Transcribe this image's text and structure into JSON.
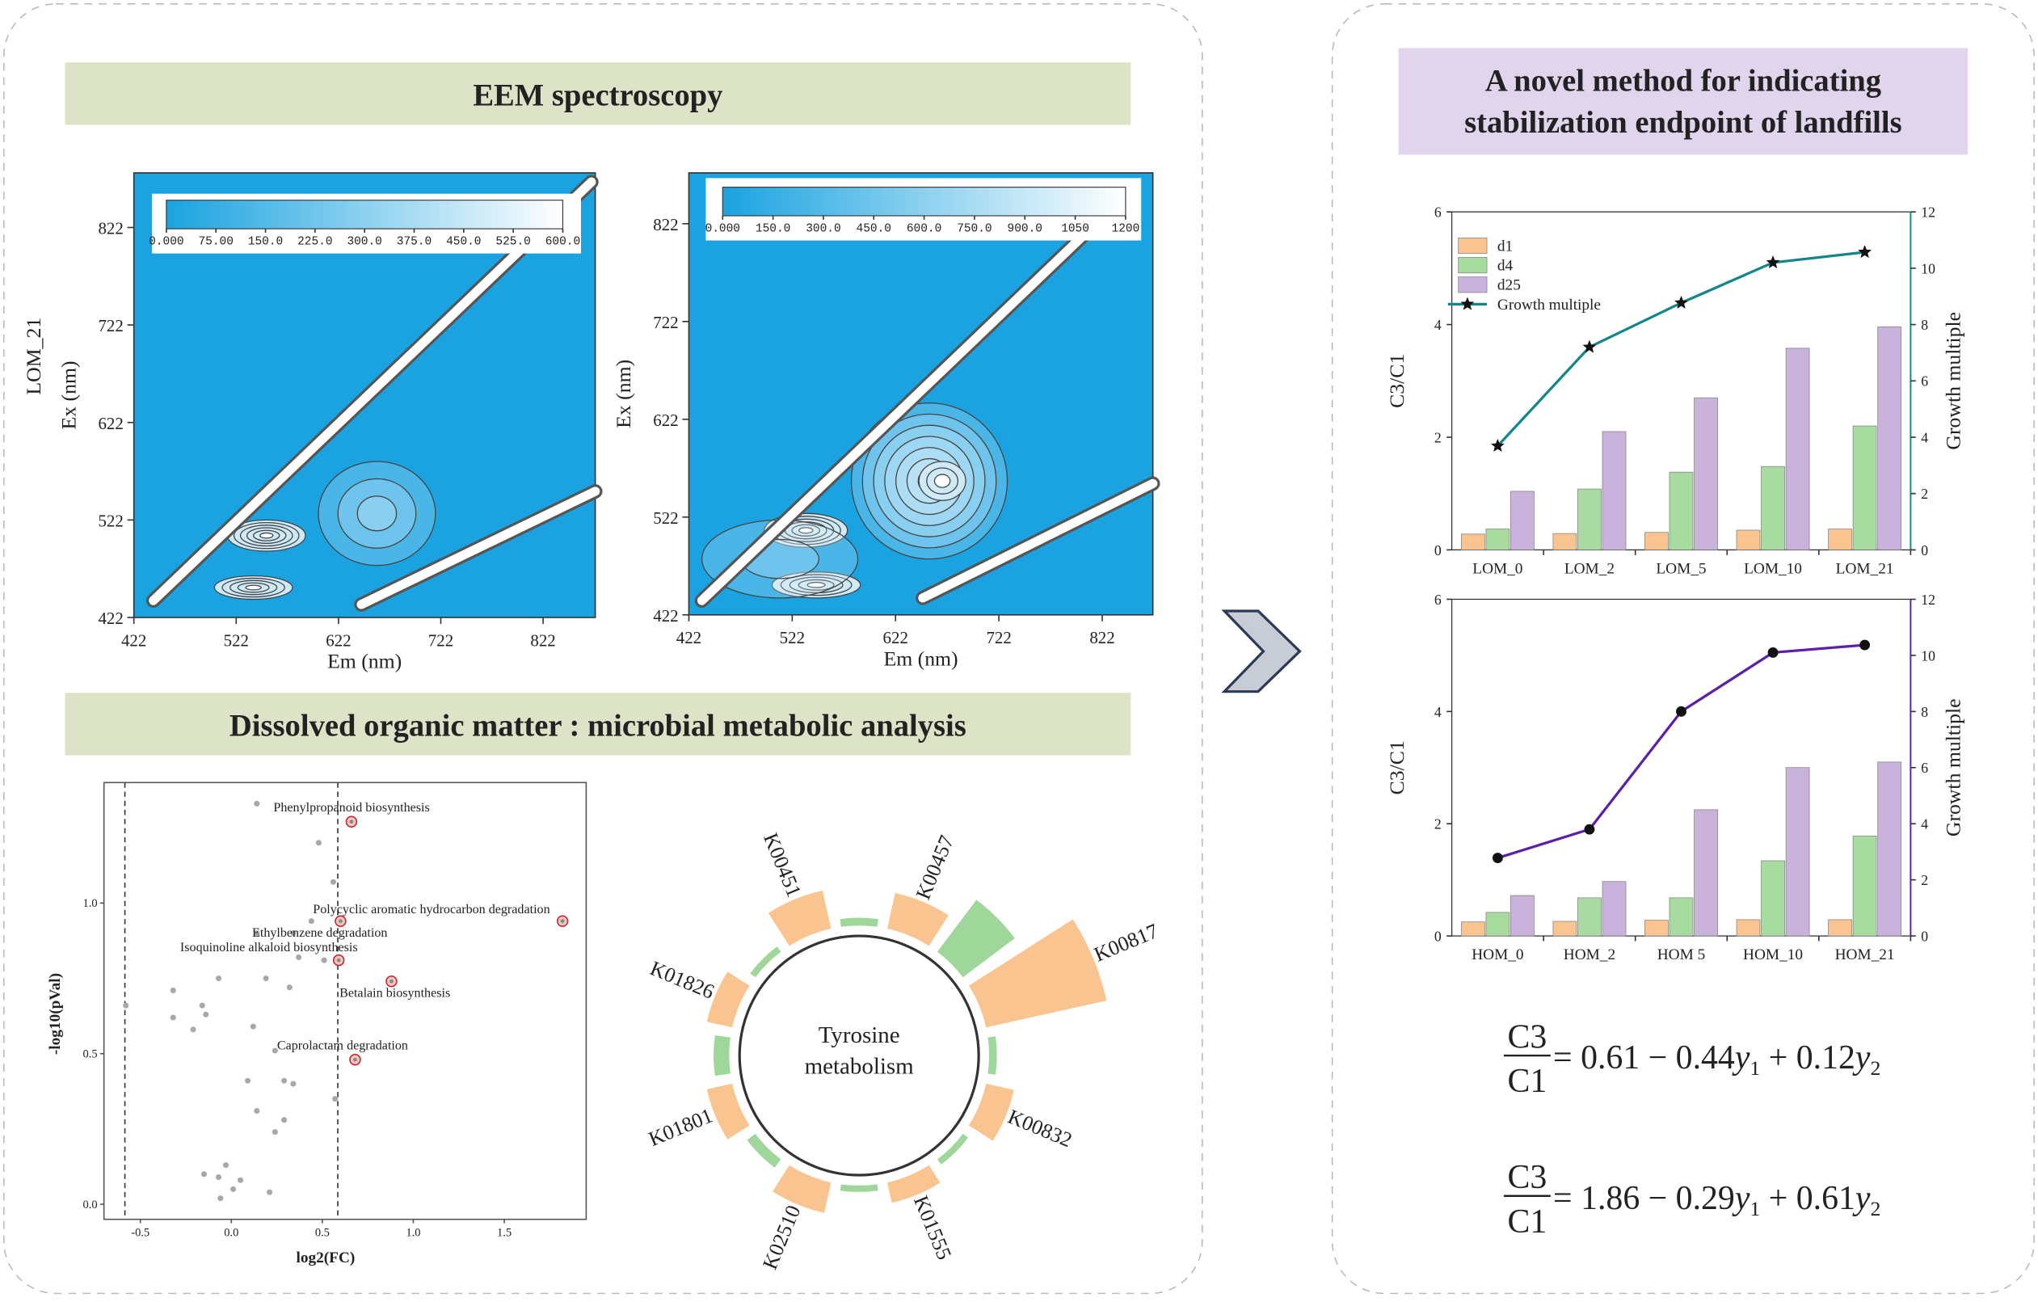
{
  "panels": {
    "eem_title": "EEM spectroscopy",
    "dom_title": "Dissolved organic matter : microbial metabolic analysis",
    "method_title_lines": [
      "A novel method for indicating",
      "stabilization endpoint of landfills"
    ]
  },
  "chart_data": [
    {
      "type": "contour",
      "row_label": "LOM_21",
      "xlabel": "Em (nm)",
      "ylabel": "Ex (nm)",
      "color": "#1aa3e0",
      "xlim": [
        422,
        873
      ],
      "ylim": [
        422,
        878
      ],
      "xticks": [
        422,
        522,
        622,
        722,
        822
      ],
      "yticks": [
        422,
        522,
        622,
        722,
        822
      ],
      "clim": [
        0,
        600
      ],
      "cticks": [
        {
          "value": 0,
          "label": "0.000"
        },
        {
          "value": 75,
          "label": "75.00"
        },
        {
          "value": 150,
          "label": "150.0"
        },
        {
          "value": 225,
          "label": "225.0"
        },
        {
          "value": 300,
          "label": "300.0"
        },
        {
          "value": 375,
          "label": "375.0"
        },
        {
          "value": 450,
          "label": "450.0"
        },
        {
          "value": 525,
          "label": "525.0"
        },
        {
          "value": 600,
          "label": "600.0"
        }
      ]
    },
    {
      "type": "contour",
      "xlabel": "Em (nm)",
      "ylabel": "Ex (nm)",
      "color": "#1aa3e0",
      "xlim": [
        422,
        871
      ],
      "ylim": [
        422,
        874
      ],
      "xticks": [
        422,
        522,
        622,
        722,
        822
      ],
      "yticks": [
        422,
        522,
        622,
        722,
        822
      ],
      "clim": [
        0,
        1200
      ],
      "cticks": [
        {
          "value": 0,
          "label": "0.000"
        },
        {
          "value": 150,
          "label": "150.0"
        },
        {
          "value": 300,
          "label": "300.0"
        },
        {
          "value": 450,
          "label": "450.0"
        },
        {
          "value": 600,
          "label": "600.0"
        },
        {
          "value": 750,
          "label": "750.0"
        },
        {
          "value": 900,
          "label": "900.0"
        },
        1050,
        1200
      ]
    },
    {
      "type": "scatter",
      "xlabel": "log2(FC)",
      "ylabel": "-log10(pVal)",
      "xlim": [
        -0.7,
        1.95
      ],
      "ylim": [
        -0.05,
        1.4
      ],
      "xticks": [
        -0.5,
        {
          "value": 0,
          "label": "0.0"
        },
        0.5,
        {
          "value": 1,
          "label": "1.0"
        },
        1.5
      ],
      "yticks": [
        {
          "value": 0,
          "label": "0.0"
        },
        0.5,
        {
          "value": 1,
          "label": "1.0"
        }
      ],
      "thresholds": [
        -0.585,
        0.585
      ],
      "series": [
        {
          "color": "#a8a8a8",
          "x": [
            0.14,
            0.48,
            0.56,
            0.44,
            0.34,
            0.14,
            0.37,
            0.51,
            -0.32,
            -0.07,
            0.19,
            0.32,
            -0.16,
            -0.14,
            -0.58,
            -0.32,
            -0.21,
            0.12,
            0.24,
            0.09,
            0.29,
            0.34,
            0.57,
            0.14,
            0.29,
            0.24,
            -0.15,
            -0.07,
            -0.03,
            0.05,
            0.01,
            -0.06,
            0.21
          ],
          "values": [
            1.33,
            1.2,
            1.07,
            0.94,
            0.9,
            0.9,
            0.82,
            0.81,
            0.71,
            0.75,
            0.75,
            0.72,
            0.66,
            0.63,
            0.66,
            0.62,
            0.58,
            0.59,
            0.51,
            0.41,
            0.41,
            0.4,
            0.35,
            0.31,
            0.28,
            0.24,
            0.1,
            0.09,
            0.13,
            0.08,
            0.05,
            0.02,
            0.04
          ]
        },
        {
          "color": "#c62828",
          "x": [
            0.66,
            1.82,
            0.6,
            0.59,
            0.88,
            0.68
          ],
          "values": [
            1.27,
            0.94,
            0.94,
            0.81,
            0.74,
            0.48
          ],
          "labels": [
            "Phenylpropanoid biosynthesis",
            "Polycyclic aromatic hydrocarbon degradation",
            "Ethylbenzene degradation",
            "Isoquinoline alkaloid biosynthesis",
            "Betalain biosynthesis",
            "Caprolactam degradation"
          ]
        }
      ]
    },
    {
      "type": "radial",
      "center_label_lines": [
        "Tyrosine",
        "metabolism"
      ],
      "categories": [
        "K00451",
        "K00457",
        "K00817",
        "K00832",
        "K01555",
        "K02510",
        "K01801",
        "K01826"
      ],
      "series": [
        {
          "color": "#f9c48f",
          "values": [
            30,
            28,
            95,
            22,
            16,
            24,
            20,
            20
          ]
        },
        {
          "color": "#9fd69a",
          "values": [
            6,
            50,
            6,
            5,
            5,
            8,
            12,
            5
          ]
        }
      ]
    },
    {
      "type": "bar_line",
      "categories": [
        "LOM_0",
        "LOM_2",
        "LOM_5",
        "LOM_10",
        "LOM_21"
      ],
      "ylabel": "C3/C1",
      "y2label": "Growth multiple",
      "ylim": [
        0,
        6
      ],
      "yticks": [
        0,
        2,
        4,
        6
      ],
      "y2lim": [
        0,
        12
      ],
      "y2ticks": [
        0,
        2,
        4,
        6,
        8,
        10,
        12
      ],
      "legend": "upper left",
      "series": [
        {
          "name": "d1",
          "color": "#f9c48f",
          "values": [
            0.28,
            0.29,
            0.31,
            0.35,
            0.37
          ]
        },
        {
          "name": "d4",
          "color": "#a8dba0",
          "values": [
            0.37,
            1.08,
            1.38,
            1.48,
            2.2
          ]
        },
        {
          "name": "d25",
          "color": "#c9b3dd",
          "values": [
            1.04,
            2.1,
            2.7,
            3.58,
            3.96
          ]
        },
        {
          "name": "Growth multiple",
          "color": "#12868a",
          "axis": "y2",
          "marker": "star",
          "values": [
            3.69,
            7.2,
            8.77,
            10.2,
            10.57
          ]
        }
      ]
    },
    {
      "type": "bar_line",
      "categories": [
        "HOM_0",
        "HOM_2",
        "HOM 5",
        "HOM_10",
        "HOM_21"
      ],
      "ylabel": "C3/C1",
      "y2label": "Growth multiple",
      "ylim": [
        0,
        6
      ],
      "yticks": [
        0,
        2,
        4,
        6
      ],
      "y2lim": [
        0,
        12
      ],
      "y2ticks": [
        0,
        2,
        4,
        6,
        8,
        10,
        12
      ],
      "series": [
        {
          "color": "#f9c48f",
          "values": [
            0.25,
            0.26,
            0.28,
            0.29,
            0.29
          ]
        },
        {
          "color": "#a8dba0",
          "values": [
            0.42,
            0.68,
            0.68,
            1.34,
            1.78
          ]
        },
        {
          "color": "#c9b3dd",
          "values": [
            0.72,
            0.97,
            2.25,
            3.0,
            3.1
          ]
        },
        {
          "color": "#5b1fa8",
          "axis": "y2",
          "marker": "circle",
          "values": [
            2.78,
            3.8,
            8.0,
            10.1,
            10.37
          ]
        }
      ]
    }
  ],
  "equations": [
    {
      "numerator": "C3",
      "denominator": "C1",
      "terms": [
        "= 0.61 − 0.44",
        "y",
        "1",
        " + 0.12",
        "y",
        "2"
      ]
    },
    {
      "numerator": "C3",
      "denominator": "C1",
      "terms": [
        "= 1.86 − 0.29",
        "y",
        "1",
        " + 0.61",
        "y",
        "2"
      ]
    }
  ]
}
